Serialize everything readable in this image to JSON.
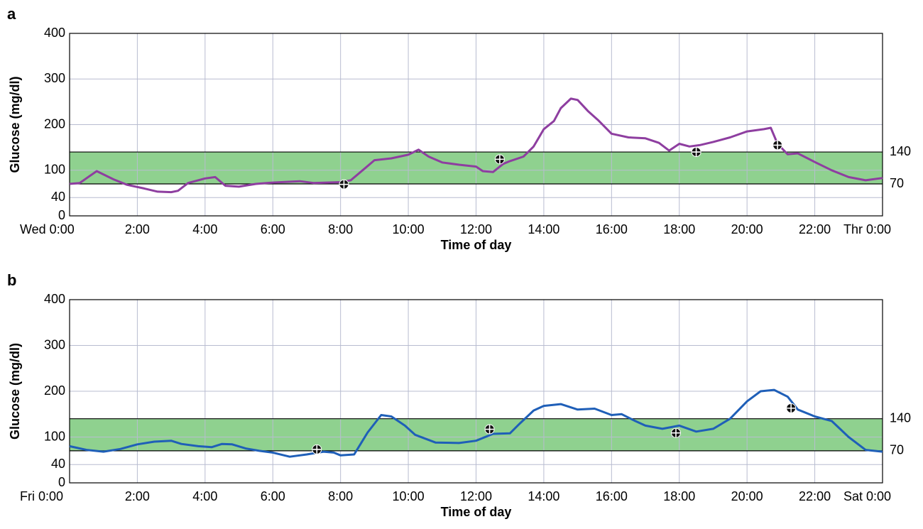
{
  "chart_data": [
    {
      "type": "line",
      "panel": "a",
      "ylabel": "Glucose (mg/dl)",
      "xlabel": "Time of day",
      "color": "#8e3ea0",
      "xlim": [
        0,
        24
      ],
      "ylim": [
        0,
        400
      ],
      "xticks": [
        {
          "value": 0,
          "label": "Wed 0:00"
        },
        {
          "value": 2,
          "label": "2:00"
        },
        {
          "value": 4,
          "label": "4:00"
        },
        {
          "value": 6,
          "label": "6:00"
        },
        {
          "value": 8,
          "label": "8:00"
        },
        {
          "value": 10,
          "label": "10:00"
        },
        {
          "value": 12,
          "label": "12:00"
        },
        {
          "value": 14,
          "label": "14:00"
        },
        {
          "value": 16,
          "label": "16:00"
        },
        {
          "value": 18,
          "label": "18:00"
        },
        {
          "value": 20,
          "label": "20:00"
        },
        {
          "value": 22,
          "label": "22:00"
        },
        {
          "value": 24,
          "label": "Thr 0:00"
        }
      ],
      "yticks": [
        0,
        40,
        100,
        200,
        300,
        400
      ],
      "grid": true,
      "band": {
        "low": 70,
        "high": 140,
        "color": "#8fd18f"
      },
      "x": [
        0,
        0.3,
        0.8,
        1.3,
        1.7,
        2.2,
        2.6,
        3.0,
        3.2,
        3.5,
        4.0,
        4.3,
        4.6,
        5.0,
        5.5,
        6.0,
        6.8,
        7.2,
        8.0,
        8.3,
        8.7,
        9.0,
        9.5,
        10.0,
        10.3,
        10.6,
        11.0,
        11.5,
        12.0,
        12.2,
        12.5,
        12.8,
        13.0,
        13.4,
        13.7,
        14.0,
        14.3,
        14.5,
        14.8,
        15.0,
        15.3,
        15.6,
        16.0,
        16.5,
        17.0,
        17.4,
        17.7,
        18.0,
        18.3,
        18.6,
        19.0,
        19.5,
        20.0,
        20.5,
        20.7,
        20.9,
        21.2,
        21.5,
        22.0,
        22.5,
        23.0,
        23.5,
        24.0
      ],
      "values": [
        70,
        72,
        98,
        80,
        68,
        60,
        53,
        52,
        55,
        72,
        82,
        85,
        66,
        64,
        70,
        73,
        76,
        72,
        74,
        78,
        103,
        122,
        126,
        134,
        145,
        130,
        117,
        112,
        108,
        98,
        96,
        114,
        120,
        130,
        152,
        190,
        208,
        236,
        257,
        254,
        230,
        210,
        180,
        172,
        170,
        160,
        143,
        158,
        152,
        155,
        162,
        172,
        185,
        190,
        193,
        158,
        135,
        137,
        118,
        100,
        85,
        78,
        83
      ],
      "markers": {
        "x": [
          8.1,
          12.7,
          18.5,
          20.9
        ],
        "values": [
          69,
          124,
          140,
          155
        ]
      }
    },
    {
      "type": "line",
      "panel": "b",
      "ylabel": "Glucose (mg/dl)",
      "xlabel": "Time of day",
      "color": "#1f5fb8",
      "xlim": [
        0,
        24
      ],
      "ylim": [
        0,
        400
      ],
      "xticks": [
        {
          "value": 0,
          "label": "Fri 0:00"
        },
        {
          "value": 2,
          "label": "2:00"
        },
        {
          "value": 4,
          "label": "4:00"
        },
        {
          "value": 6,
          "label": "6:00"
        },
        {
          "value": 8,
          "label": "8:00"
        },
        {
          "value": 10,
          "label": "10:00"
        },
        {
          "value": 12,
          "label": "12:00"
        },
        {
          "value": 14,
          "label": "14:00"
        },
        {
          "value": 16,
          "label": "16:00"
        },
        {
          "value": 18,
          "label": "18:00"
        },
        {
          "value": 20,
          "label": "20:00"
        },
        {
          "value": 22,
          "label": "22:00"
        },
        {
          "value": 24,
          "label": "Sat 0:00"
        }
      ],
      "yticks": [
        0,
        40,
        100,
        200,
        300,
        400
      ],
      "grid": true,
      "band": {
        "low": 70,
        "high": 140,
        "color": "#8fd18f"
      },
      "x": [
        0,
        0.5,
        1.0,
        1.5,
        2.0,
        2.5,
        3.0,
        3.3,
        3.8,
        4.2,
        4.5,
        4.8,
        5.2,
        5.6,
        6.0,
        6.5,
        7.0,
        7.5,
        7.8,
        8.0,
        8.4,
        8.8,
        9.2,
        9.5,
        9.9,
        10.2,
        10.8,
        11.5,
        12.0,
        12.5,
        13.0,
        13.3,
        13.7,
        14.0,
        14.5,
        15.0,
        15.5,
        16.0,
        16.3,
        16.7,
        17.0,
        17.5,
        18.0,
        18.5,
        19.0,
        19.5,
        20.0,
        20.4,
        20.8,
        21.2,
        21.5,
        22.0,
        22.5,
        23.0,
        23.5,
        24.0
      ],
      "values": [
        80,
        72,
        68,
        74,
        84,
        90,
        92,
        85,
        80,
        78,
        85,
        84,
        75,
        70,
        66,
        57,
        62,
        68,
        66,
        60,
        62,
        110,
        148,
        145,
        125,
        105,
        88,
        87,
        92,
        107,
        108,
        130,
        158,
        168,
        172,
        160,
        162,
        148,
        150,
        135,
        125,
        118,
        125,
        112,
        118,
        140,
        178,
        200,
        203,
        188,
        160,
        145,
        135,
        100,
        72,
        68
      ],
      "markers": {
        "x": [
          7.3,
          12.4,
          17.9,
          21.3
        ],
        "values": [
          73,
          117,
          109,
          163
        ]
      }
    }
  ]
}
